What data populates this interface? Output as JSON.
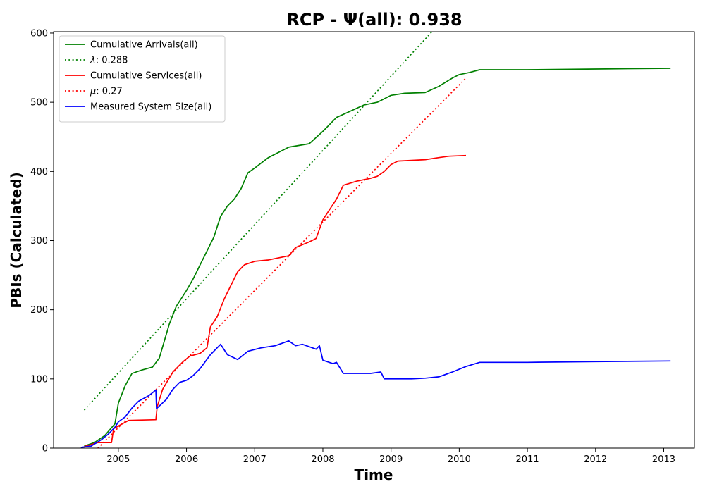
{
  "chart_data": {
    "type": "line",
    "title": "RCP -  Ψ(all): 0.938",
    "xlabel": "Time",
    "ylabel": "PBIs (Calculated)",
    "xlim": [
      2004.05,
      2013.45
    ],
    "ylim": [
      0,
      602
    ],
    "x_ticks": [
      2005,
      2006,
      2007,
      2008,
      2009,
      2010,
      2011,
      2012,
      2013
    ],
    "y_ticks": [
      0,
      100,
      200,
      300,
      400,
      500,
      600
    ],
    "grid": false,
    "legend_position": "top-left",
    "series": [
      {
        "name": "Cumulative Arrivals(all)",
        "label_prefix": "",
        "label_italic": "",
        "label_suffix": "",
        "color": "#008000",
        "style": "solid",
        "x": [
          2004.5,
          2004.65,
          2004.8,
          2004.95,
          2005.0,
          2005.1,
          2005.2,
          2005.35,
          2005.5,
          2005.6,
          2005.75,
          2005.85,
          2006.0,
          2006.1,
          2006.2,
          2006.3,
          2006.4,
          2006.5,
          2006.6,
          2006.7,
          2006.8,
          2006.9,
          2007.0,
          2007.2,
          2007.5,
          2007.8,
          2008.0,
          2008.2,
          2008.4,
          2008.6,
          2008.8,
          2009.0,
          2009.2,
          2009.5,
          2009.7,
          2009.9,
          2010.0,
          2010.15,
          2010.3,
          2011.0,
          2012.0,
          2013.1
        ],
        "y": [
          3,
          8,
          18,
          35,
          65,
          90,
          108,
          113,
          117,
          130,
          180,
          205,
          228,
          245,
          265,
          285,
          305,
          335,
          350,
          360,
          375,
          398,
          405,
          420,
          435,
          440,
          458,
          478,
          487,
          496,
          500,
          510,
          513,
          514,
          523,
          535,
          540,
          543,
          547,
          547,
          548,
          549
        ]
      },
      {
        "name": "",
        "label_prefix": "",
        "label_italic": "λ",
        "label_suffix": ": 0.288",
        "color": "#008000",
        "style": "dotted",
        "x": [
          2004.5,
          2009.6
        ],
        "y": [
          55,
          602
        ]
      },
      {
        "name": "Cumulative Services(all)",
        "label_prefix": "",
        "label_italic": "",
        "label_suffix": "",
        "color": "#ff0000",
        "style": "solid",
        "x": [
          2004.5,
          2004.7,
          2004.9,
          2004.93,
          2005.0,
          2005.15,
          2005.55,
          2005.57,
          2005.65,
          2005.8,
          2005.95,
          2006.05,
          2006.2,
          2006.3,
          2006.35,
          2006.45,
          2006.55,
          2006.65,
          2006.75,
          2006.85,
          2007.0,
          2007.2,
          2007.5,
          2007.6,
          2007.8,
          2007.9,
          2008.0,
          2008.1,
          2008.2,
          2008.3,
          2008.5,
          2008.7,
          2008.8,
          2008.9,
          2009.0,
          2009.1,
          2009.5,
          2009.7,
          2009.85,
          2010.1
        ],
        "y": [
          2,
          8,
          8,
          28,
          32,
          40,
          41,
          60,
          85,
          110,
          125,
          133,
          137,
          145,
          175,
          190,
          215,
          235,
          255,
          265,
          270,
          272,
          278,
          290,
          298,
          303,
          330,
          345,
          360,
          380,
          386,
          390,
          393,
          400,
          410,
          415,
          417,
          420,
          422,
          423
        ]
      },
      {
        "name": "",
        "label_prefix": "",
        "label_italic": "μ",
        "label_suffix": ": 0.27",
        "color": "#ff0000",
        "style": "dotted",
        "x": [
          2004.7,
          2010.1
        ],
        "y": [
          0,
          535
        ]
      },
      {
        "name": "Measured System Size(all)",
        "label_prefix": "",
        "label_italic": "",
        "label_suffix": "",
        "color": "#0000ff",
        "style": "solid",
        "x": [
          2004.45,
          2004.6,
          2004.75,
          2004.85,
          2004.95,
          2005.0,
          2005.1,
          2005.2,
          2005.3,
          2005.45,
          2005.55,
          2005.56,
          2005.7,
          2005.8,
          2005.9,
          2006.0,
          2006.1,
          2006.2,
          2006.35,
          2006.5,
          2006.6,
          2006.75,
          2006.9,
          2007.1,
          2007.3,
          2007.5,
          2007.6,
          2007.7,
          2007.9,
          2007.95,
          2008.0,
          2008.15,
          2008.2,
          2008.3,
          2008.5,
          2008.7,
          2008.85,
          2008.9,
          2009.0,
          2009.3,
          2009.5,
          2009.7,
          2009.9,
          2010.1,
          2010.3,
          2011.0,
          2012.0,
          2013.1
        ],
        "y": [
          1,
          3,
          12,
          20,
          30,
          38,
          45,
          58,
          68,
          76,
          84,
          57,
          70,
          85,
          95,
          98,
          105,
          115,
          135,
          150,
          135,
          128,
          140,
          145,
          148,
          155,
          148,
          150,
          143,
          148,
          127,
          122,
          124,
          108,
          108,
          108,
          110,
          100,
          100,
          100,
          101,
          103,
          110,
          118,
          124,
          124,
          125,
          126
        ]
      }
    ]
  }
}
